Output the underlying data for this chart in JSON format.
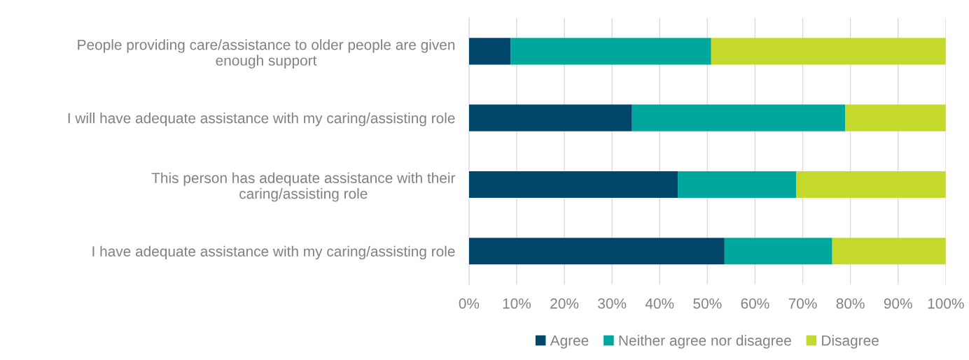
{
  "chart_data": {
    "type": "bar",
    "orientation": "horizontal",
    "stacked": true,
    "categories": [
      "People providing care/assistance to older people are given\nenough support",
      "I will have adequate assistance with my caring/assisting role",
      "This person has adequate assistance with their\ncaring/assisting role",
      "I have adequate assistance with my caring/assisting role"
    ],
    "series": [
      {
        "name": "Agree",
        "color": "#00466b",
        "values": [
          8.7,
          34.2,
          43.8,
          53.6
        ]
      },
      {
        "name": "Neither agree nor disagree",
        "color": "#00a79d",
        "values": [
          42.1,
          44.7,
          24.8,
          22.6
        ]
      },
      {
        "name": "Disagree",
        "color": "#c5d92d",
        "values": [
          49.2,
          21.1,
          31.4,
          23.8
        ]
      }
    ],
    "xlim": [
      0,
      100
    ],
    "xticks": [
      {
        "value": 0,
        "label": "0%"
      },
      {
        "value": 10,
        "label": "10%"
      },
      {
        "value": 20,
        "label": "20%"
      },
      {
        "value": 30,
        "label": "30%"
      },
      {
        "value": 40,
        "label": "40%"
      },
      {
        "value": 50,
        "label": "50%"
      },
      {
        "value": 60,
        "label": "60%"
      },
      {
        "value": 70,
        "label": "70%"
      },
      {
        "value": 80,
        "label": "80%"
      },
      {
        "value": 90,
        "label": "90%"
      },
      {
        "value": 100,
        "label": "100%"
      }
    ],
    "grid": "x",
    "legend": "bottom"
  }
}
